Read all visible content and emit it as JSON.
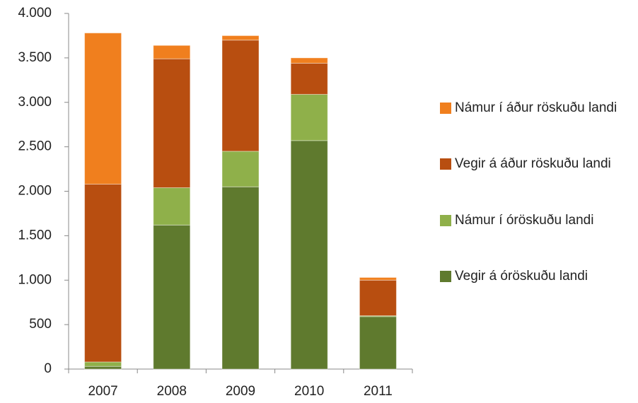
{
  "chart_data": {
    "type": "stacked_bar",
    "categories": [
      "2007",
      "2008",
      "2009",
      "2010",
      "2011"
    ],
    "series": [
      {
        "name": "Vegir á óröskuðu landi",
        "color": "#5f7a2e",
        "values": [
          30,
          1620,
          2050,
          2570,
          590
        ]
      },
      {
        "name": "Námur í óröskuðu landi",
        "color": "#8fb04a",
        "values": [
          50,
          420,
          400,
          520,
          10
        ]
      },
      {
        "name": "Vegir á áður röskuðu landi",
        "color": "#b84e10",
        "values": [
          2000,
          1450,
          1250,
          350,
          400
        ]
      },
      {
        "name": "Námur í áður röskuðu landi",
        "color": "#f07f1e",
        "values": [
          1700,
          150,
          50,
          60,
          30
        ]
      }
    ],
    "ylim": [
      0,
      4000
    ],
    "yticks": [
      0,
      500,
      {
        "value": 1000,
        "label": "1.000"
      },
      {
        "value": 1500,
        "label": "1.500"
      },
      {
        "value": 2000,
        "label": "2.000"
      },
      {
        "value": 2500,
        "label": "2.500"
      },
      {
        "value": 3000,
        "label": "3.000"
      },
      {
        "value": 3500,
        "label": "3.500"
      },
      {
        "value": 4000,
        "label": "4.000"
      }
    ],
    "legend": "right"
  }
}
